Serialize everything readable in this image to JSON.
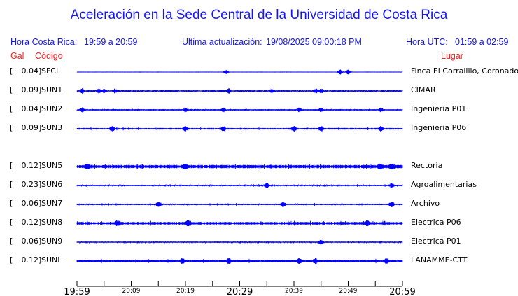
{
  "header": {
    "title": "Aceleración en la Sede Central de la Universidad de Costa Rica",
    "local_time_label": "Hora Costa Rica:",
    "local_time_range": "19:59 a 20:59",
    "update_label": "Ultima actualización:",
    "update_value": "19/08/2025 09:00:18 PM",
    "utc_label": "Hora UTC:",
    "utc_range": "01:59 a 02:59",
    "col_gal": "Gal",
    "col_code": "Código",
    "col_place": "Lugar"
  },
  "colors": {
    "trace": "#0000ff",
    "header": "#1515f0",
    "column_header": "#ff2020"
  },
  "chart_data": {
    "type": "line",
    "xlabel": "",
    "ylabel": "",
    "x_range": [
      "19:59",
      "20:59"
    ],
    "x_ticks_minor_interval_min": 5,
    "tick_labels": [
      "19:59",
      "20:09",
      "20:19",
      "20:29",
      "20:39",
      "20:49",
      "20:59"
    ],
    "stations": [
      {
        "gal": "0.04",
        "code": "SFCL",
        "place": "Finca El Corralillo, Coronado",
        "noise": 0.1,
        "events": [
          27.5,
          48.5,
          50
        ]
      },
      {
        "gal": "0.09",
        "code": "SUN1",
        "place": "CIMAR",
        "noise": 0.8,
        "events": [
          1,
          4,
          5,
          7,
          28,
          36,
          45,
          44
        ]
      },
      {
        "gal": "0.04",
        "code": "SUN2",
        "place": "Ingenieria P01",
        "noise": 0.4,
        "events": [
          1,
          20,
          27,
          41,
          45,
          56
        ]
      },
      {
        "gal": "0.09",
        "code": "SUN3",
        "place": "Ingenieria P06",
        "noise": 1.6,
        "events": [
          6.5,
          20,
          27,
          40,
          45,
          56
        ]
      },
      {
        "gal": "0.12",
        "code": "SUN5",
        "place": "Rectoria",
        "noise": 3.2,
        "events": [
          2,
          20,
          56,
          58
        ]
      },
      {
        "gal": "0.23",
        "code": "SUN6",
        "place": "Agroalimentarias",
        "noise": 1.2,
        "events": [
          35,
          58
        ]
      },
      {
        "gal": "0.06",
        "code": "SUN7",
        "place": "Archivo",
        "noise": 1.4,
        "events": [
          15,
          38,
          58
        ]
      },
      {
        "gal": "0.12",
        "code": "SUN8",
        "place": "Electrica P06",
        "noise": 2.6,
        "events": [
          7.5,
          20.5,
          53.5
        ]
      },
      {
        "gal": "0.06",
        "code": "SUN9",
        "place": "Electrica P01",
        "noise": 1.1,
        "events": [
          45
        ]
      },
      {
        "gal": "0.12",
        "code": "SUNL",
        "place": "LANAMME-CTT",
        "noise": 2.2,
        "events": [
          19.5,
          28,
          41,
          44,
          57
        ]
      }
    ]
  }
}
